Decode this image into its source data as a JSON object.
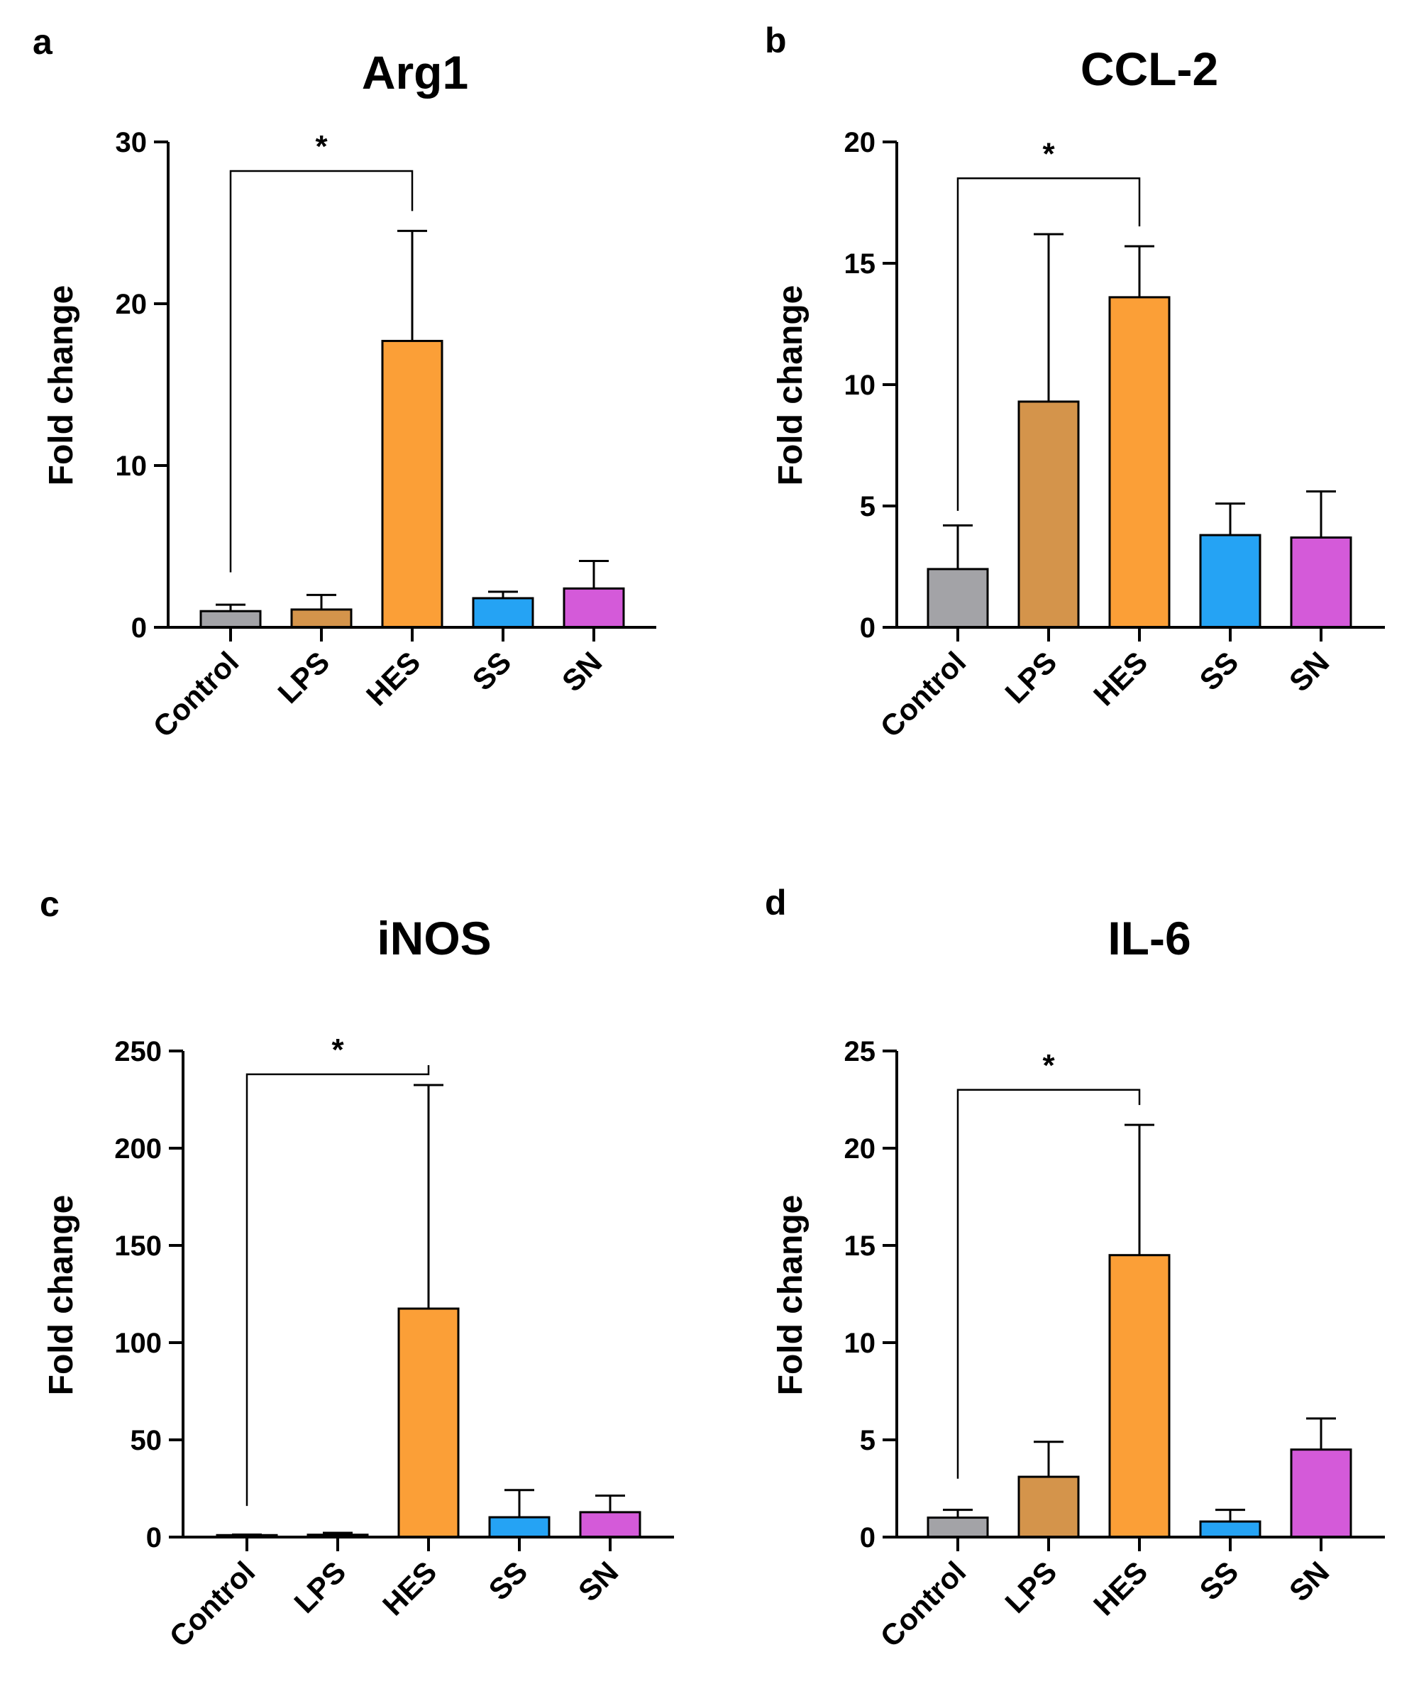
{
  "chart_data": [
    {
      "panel": "a",
      "type": "bar",
      "title": "Arg1",
      "ylabel": "Fold change",
      "xlabel": "",
      "categories": [
        "Control",
        "LPS",
        "HES",
        "SS",
        "SN"
      ],
      "values": [
        1.0,
        1.1,
        17.7,
        1.8,
        2.4
      ],
      "errors": [
        0.4,
        0.9,
        6.8,
        0.4,
        1.7
      ],
      "ylim": [
        0,
        30
      ],
      "yticks": [
        0,
        10,
        20,
        30
      ],
      "colors": [
        "#a3a3a7",
        "#d4944b",
        "#fb9f37",
        "#25a3f4",
        "#d45ad9"
      ],
      "significance": [
        {
          "from": "Control",
          "to": "HES",
          "label": "*",
          "bracket_y": 28.2,
          "control_tip_y": 3.4
        }
      ]
    },
    {
      "panel": "b",
      "type": "bar",
      "title": "CCL-2",
      "ylabel": "Fold change",
      "xlabel": "",
      "categories": [
        "Control",
        "LPS",
        "HES",
        "SS",
        "SN"
      ],
      "values": [
        2.4,
        9.3,
        13.6,
        3.8,
        3.7
      ],
      "errors": [
        1.8,
        6.9,
        2.1,
        1.3,
        1.9
      ],
      "ylim": [
        0,
        20
      ],
      "yticks": [
        0,
        5,
        10,
        15,
        20
      ],
      "colors": [
        "#a3a3a7",
        "#d4944b",
        "#fb9f37",
        "#25a3f4",
        "#d45ad9"
      ],
      "significance": [
        {
          "from": "Control",
          "to": "HES",
          "label": "*",
          "bracket_y": 18.5,
          "control_tip_y": 4.8
        }
      ]
    },
    {
      "panel": "c",
      "type": "bar",
      "title": "iNOS",
      "ylabel": "Fold change",
      "xlabel": "",
      "categories": [
        "Control",
        "LPS",
        "HES",
        "SS",
        "SN"
      ],
      "values": [
        1.0,
        1.2,
        117.5,
        10.2,
        12.8
      ],
      "errors": [
        0.3,
        1.0,
        115.0,
        14.0,
        8.5
      ],
      "ylim": [
        0,
        250
      ],
      "yticks": [
        0,
        50,
        100,
        150,
        200,
        250
      ],
      "colors": [
        "#a3a3a7",
        "#d4944b",
        "#fb9f37",
        "#25a3f4",
        "#d45ad9"
      ],
      "significance": [
        {
          "from": "Control",
          "to": "HES",
          "label": "*",
          "bracket_y": 238,
          "control_tip_y": 16
        }
      ]
    },
    {
      "panel": "d",
      "type": "bar",
      "title": "IL-6",
      "ylabel": "Fold change",
      "xlabel": "",
      "categories": [
        "Control",
        "LPS",
        "HES",
        "SS",
        "SN"
      ],
      "values": [
        1.0,
        3.1,
        14.5,
        0.8,
        4.5
      ],
      "errors": [
        0.4,
        1.8,
        6.7,
        0.6,
        1.6
      ],
      "ylim": [
        0,
        25
      ],
      "yticks": [
        0,
        5,
        10,
        15,
        20,
        25
      ],
      "colors": [
        "#a3a3a7",
        "#d4944b",
        "#fb9f37",
        "#25a3f4",
        "#d45ad9"
      ],
      "significance": [
        {
          "from": "Control",
          "to": "HES",
          "label": "*",
          "bracket_y": 23.0,
          "control_tip_y": 3.0
        }
      ]
    }
  ]
}
